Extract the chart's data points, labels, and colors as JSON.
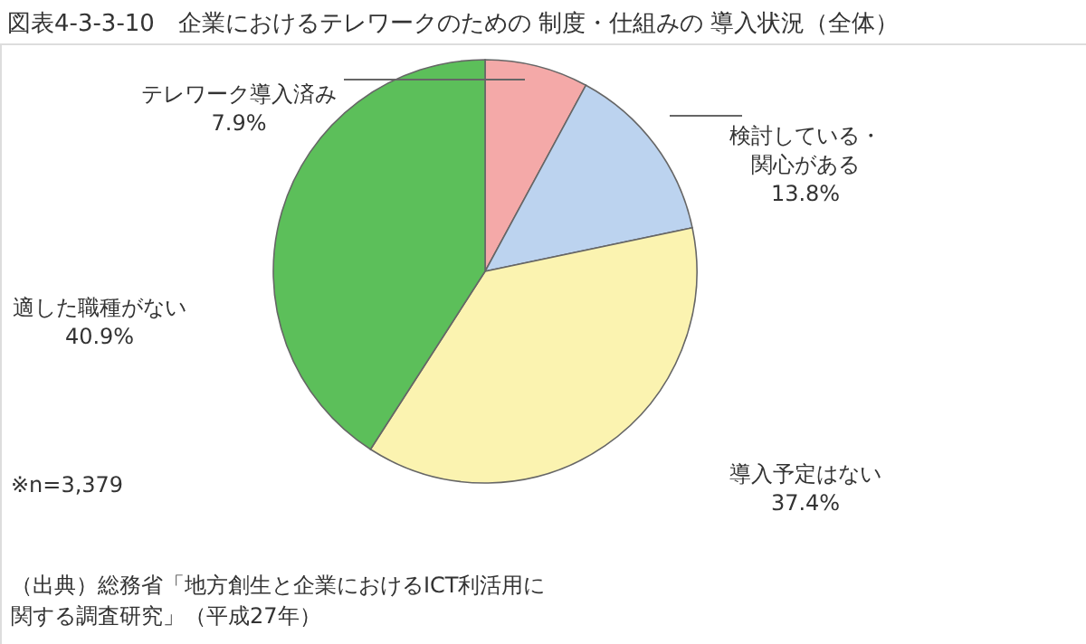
{
  "chart_data": {
    "type": "pie",
    "title": "図表4-3-3-10　企業におけるテレワークのための 制度・仕組みの 導入状況（全体）",
    "categories": [
      "テレワーク導入済み",
      "検討している・関心がある",
      "導入予定はない",
      "適した職種がない"
    ],
    "values": [
      7.9,
      13.8,
      37.4,
      40.9
    ],
    "colors": [
      "#f4a9a8",
      "#bcd3ef",
      "#fbf3b0",
      "#5cbf5a"
    ],
    "value_labels": [
      "7.9%",
      "13.8%",
      "37.4%",
      "40.9%"
    ],
    "annotations": [
      "※n=3,379",
      "（出典）総務省「地方創生と企業におけるICT利活用に関する調査研究」（平成27年）"
    ]
  }
}
